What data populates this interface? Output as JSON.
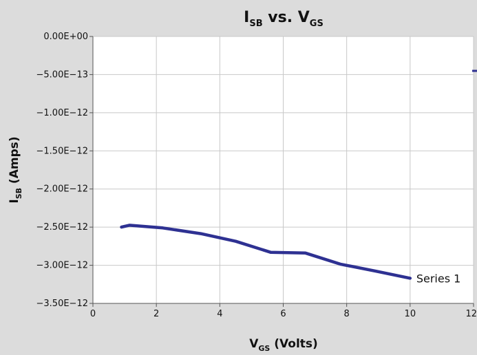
{
  "chart_data": {
    "type": "line",
    "title": {
      "main": "I",
      "sub1": "SB",
      "mid": " vs. V",
      "sub2": "GS"
    },
    "xlabel": {
      "main": "V",
      "sub": "GS",
      "rest": " (Volts)"
    },
    "ylabel": {
      "main": "I",
      "sub": "SB",
      "rest": " (Amps)"
    },
    "xlim": [
      0,
      12
    ],
    "ylim": [
      -3.5e-12,
      0
    ],
    "x_ticks": [
      0,
      2,
      4,
      6,
      8,
      10,
      12
    ],
    "x_tick_labels": [
      "0",
      "2",
      "4",
      "6",
      "8",
      "10",
      "12"
    ],
    "y_ticks": [
      0,
      -5e-13,
      -1e-12,
      -1.5e-12,
      -2e-12,
      -2.5e-12,
      -3e-12,
      -3.5e-12
    ],
    "y_tick_labels": [
      "0.00E+00",
      "−5.00E−13",
      "−1.00E−12",
      "−1.50E−12",
      "−2.00E−12",
      "−2.50E−12",
      "−3.00E−12",
      "−3.50E−12"
    ],
    "grid": true,
    "series": [
      {
        "name": "Series 1",
        "color": "#2e3192",
        "x": [
          0.9,
          1.15,
          2.2,
          3.4,
          4.5,
          5.6,
          6.7,
          7.8,
          8.9,
          10.0
        ],
        "y": [
          -2.5e-12,
          -2.475e-12,
          -2.51e-12,
          -2.585e-12,
          -2.685e-12,
          -2.83e-12,
          -2.84e-12,
          -2.985e-12,
          -3.075e-12,
          -3.17e-12
        ]
      }
    ]
  }
}
